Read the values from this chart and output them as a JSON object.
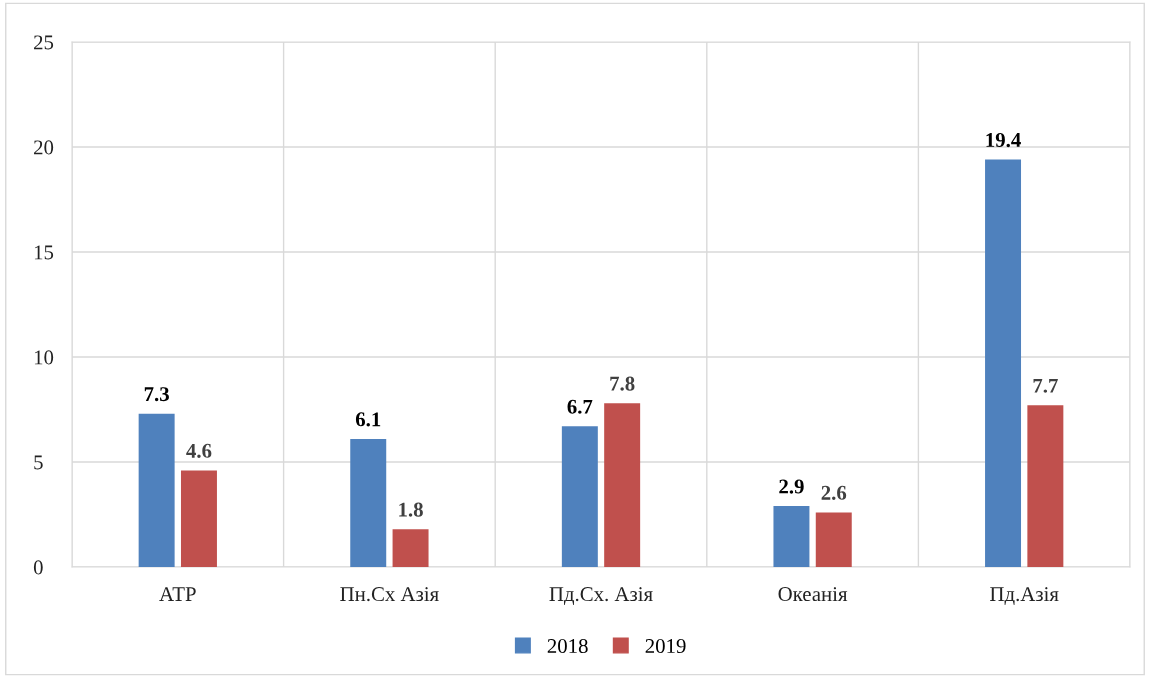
{
  "chart_data": {
    "type": "bar",
    "categories": [
      "АТР",
      "Пн.Сх Азія",
      "Пд.Сх. Азія",
      "Океанія",
      "Пд.Азія"
    ],
    "series": [
      {
        "name": "2018",
        "color": "#4f81bd",
        "values": [
          7.3,
          6.1,
          6.7,
          2.9,
          19.4
        ]
      },
      {
        "name": "2019",
        "color": "#c0504d",
        "values": [
          4.6,
          1.8,
          7.8,
          2.6,
          7.7
        ]
      }
    ],
    "ylim": [
      0,
      25
    ],
    "yticks": [
      0,
      5,
      10,
      15,
      20,
      25
    ],
    "grid": true,
    "legend": "bottom",
    "data_labels": true
  }
}
